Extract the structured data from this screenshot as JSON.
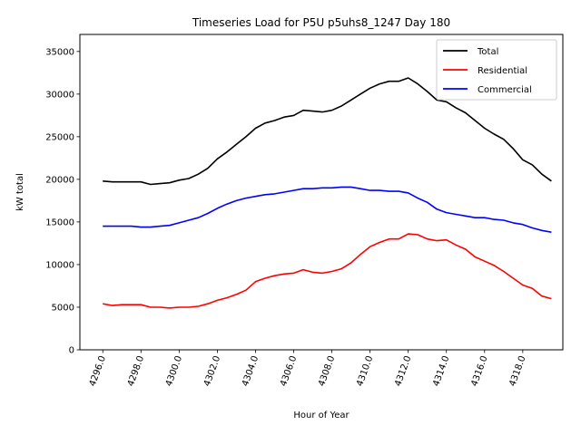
{
  "chart_data": {
    "type": "line",
    "title": "Timeseries Load for P5U p5uhs8_1247  Day 180",
    "xlabel": "Hour of Year",
    "ylabel": "kW total",
    "xlim": [
      4294.8,
      4320.1
    ],
    "ylim": [
      0,
      37000
    ],
    "xticks": [
      4296,
      4298,
      4300,
      4302,
      4304,
      4306,
      4308,
      4310,
      4312,
      4314,
      4316,
      4318
    ],
    "xtick_labels": [
      "4296.0",
      "4298.0",
      "4300.0",
      "4302.0",
      "4304.0",
      "4306.0",
      "4308.0",
      "4310.0",
      "4312.0",
      "4314.0",
      "4316.0",
      "4318.0"
    ],
    "yticks": [
      0,
      5000,
      10000,
      15000,
      20000,
      25000,
      30000,
      35000
    ],
    "ytick_labels": [
      "0",
      "5000",
      "10000",
      "15000",
      "20000",
      "25000",
      "30000",
      "35000"
    ],
    "legend_position": "upper right",
    "x": [
      4296.0,
      4296.5,
      4297.0,
      4297.5,
      4298.0,
      4298.5,
      4299.0,
      4299.5,
      4300.0,
      4300.5,
      4301.0,
      4301.5,
      4302.0,
      4302.5,
      4303.0,
      4303.5,
      4304.0,
      4304.5,
      4305.0,
      4305.5,
      4306.0,
      4306.5,
      4307.0,
      4307.5,
      4308.0,
      4308.5,
      4309.0,
      4309.5,
      4310.0,
      4310.5,
      4311.0,
      4311.5,
      4312.0,
      4312.5,
      4313.0,
      4313.5,
      4314.0,
      4314.5,
      4315.0,
      4315.5,
      4316.0,
      4316.5,
      4317.0,
      4317.5,
      4318.0,
      4318.5,
      4319.0,
      4319.5
    ],
    "series": [
      {
        "name": "Total",
        "color": "#000000",
        "values": [
          19800,
          19700,
          19700,
          19700,
          19700,
          19400,
          19500,
          19600,
          19900,
          20100,
          20600,
          21300,
          22400,
          23200,
          24100,
          25000,
          26000,
          26600,
          26900,
          27300,
          27500,
          28100,
          28000,
          27900,
          28100,
          28600,
          29300,
          30000,
          30700,
          31200,
          31500,
          31500,
          31900,
          31200,
          30300,
          29300,
          29100,
          28400,
          27800,
          26900,
          26000,
          25300,
          24700,
          23600,
          22300,
          21700,
          20600,
          19800
        ]
      },
      {
        "name": "Residential",
        "color": "#ff0000",
        "values": [
          5400,
          5200,
          5300,
          5300,
          5300,
          5000,
          5000,
          4900,
          5000,
          5000,
          5100,
          5400,
          5800,
          6100,
          6500,
          7000,
          8000,
          8400,
          8700,
          8900,
          9000,
          9400,
          9100,
          9000,
          9200,
          9500,
          10200,
          11200,
          12100,
          12600,
          13000,
          13000,
          13600,
          13500,
          13000,
          12800,
          12900,
          12300,
          11800,
          10900,
          10400,
          9900,
          9200,
          8400,
          7600,
          7200,
          6300,
          6000
        ]
      },
      {
        "name": "Commercial",
        "color": "#0000ff",
        "values": [
          14500,
          14500,
          14500,
          14500,
          14400,
          14400,
          14500,
          14600,
          14900,
          15200,
          15500,
          16000,
          16600,
          17100,
          17500,
          17800,
          18000,
          18200,
          18300,
          18500,
          18700,
          18900,
          18900,
          19000,
          19000,
          19100,
          19100,
          18900,
          18700,
          18700,
          18600,
          18600,
          18400,
          17800,
          17300,
          16500,
          16100,
          15900,
          15700,
          15500,
          15500,
          15300,
          15200,
          14900,
          14700,
          14300,
          14000,
          13800
        ]
      }
    ]
  }
}
